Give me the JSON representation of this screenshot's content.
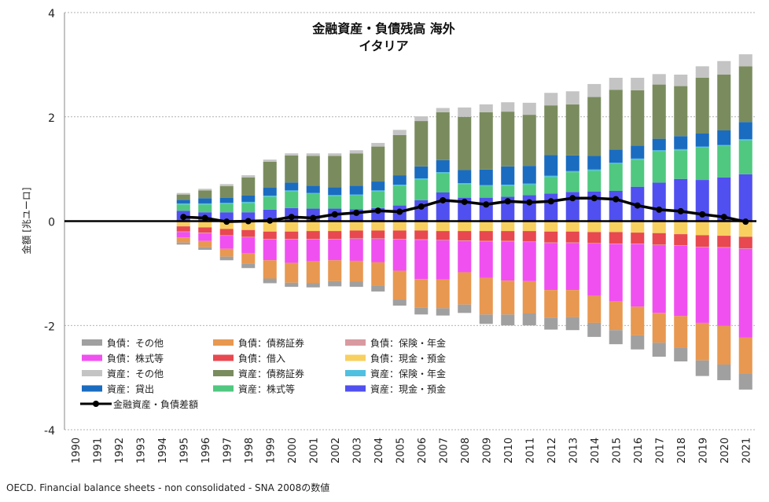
{
  "chart_data": {
    "type": "bar",
    "stacked": true,
    "title": "金融資産・負債残高 海外",
    "subtitle": "イタリア",
    "ylabel": "金額 [兆ユーロ]",
    "xlabel": "",
    "ylim": [
      -4,
      4
    ],
    "yticks": [
      4,
      2,
      0,
      -2,
      -4
    ],
    "grid": true,
    "legend_position": "lower-left",
    "categories": [
      "1990",
      "1991",
      "1992",
      "1993",
      "1994",
      "1995",
      "1996",
      "1997",
      "1998",
      "1999",
      "2000",
      "2001",
      "2002",
      "2003",
      "2004",
      "2005",
      "2006",
      "2007",
      "2008",
      "2009",
      "2010",
      "2011",
      "2012",
      "2013",
      "2014",
      "2015",
      "2016",
      "2017",
      "2018",
      "2019",
      "2020",
      "2021"
    ],
    "asset_series": [
      {
        "name": "資産：現金・預金",
        "color": "#5050f0",
        "values": [
          0,
          0,
          0,
          0,
          0,
          0.2,
          0.17,
          0.17,
          0.17,
          0.22,
          0.25,
          0.24,
          0.24,
          0.23,
          0.25,
          0.3,
          0.4,
          0.55,
          0.45,
          0.45,
          0.47,
          0.5,
          0.53,
          0.56,
          0.57,
          0.58,
          0.66,
          0.74,
          0.81,
          0.79,
          0.84,
          0.9
        ]
      },
      {
        "name": "資産：株式等",
        "color": "#50c880",
        "values": [
          0,
          0,
          0,
          0,
          0,
          0.12,
          0.15,
          0.16,
          0.18,
          0.25,
          0.32,
          0.28,
          0.24,
          0.26,
          0.32,
          0.38,
          0.4,
          0.37,
          0.26,
          0.22,
          0.21,
          0.2,
          0.32,
          0.38,
          0.4,
          0.52,
          0.52,
          0.6,
          0.55,
          0.62,
          0.6,
          0.65
        ]
      },
      {
        "name": "資産：保険・年金",
        "color": "#50c0e0",
        "values": [
          0,
          0,
          0,
          0,
          0,
          0.02,
          0.02,
          0.02,
          0.02,
          0.02,
          0.02,
          0.02,
          0.02,
          0.02,
          0.02,
          0.02,
          0.02,
          0.02,
          0.02,
          0.02,
          0.02,
          0.02,
          0.02,
          0.02,
          0.02,
          0.02,
          0.02,
          0.02,
          0.02,
          0.02,
          0.02,
          0.02
        ]
      },
      {
        "name": "資産：貸出",
        "color": "#1a6cc0",
        "values": [
          0,
          0,
          0,
          0,
          0,
          0.07,
          0.1,
          0.1,
          0.12,
          0.15,
          0.15,
          0.14,
          0.15,
          0.17,
          0.17,
          0.18,
          0.23,
          0.23,
          0.25,
          0.3,
          0.35,
          0.34,
          0.4,
          0.3,
          0.26,
          0.25,
          0.25,
          0.22,
          0.25,
          0.25,
          0.28,
          0.33
        ]
      },
      {
        "name": "資産：債務証券",
        "color": "#7a8c5e",
        "values": [
          0,
          0,
          0,
          0,
          0,
          0.1,
          0.15,
          0.22,
          0.35,
          0.5,
          0.52,
          0.57,
          0.6,
          0.62,
          0.67,
          0.77,
          0.87,
          0.92,
          1.02,
          1.1,
          1.05,
          0.98,
          0.95,
          0.98,
          1.13,
          1.15,
          1.06,
          1.04,
          0.96,
          1.07,
          1.07,
          1.07
        ]
      },
      {
        "name": "資産：その他",
        "color": "#c4c4c4",
        "values": [
          0,
          0,
          0,
          0,
          0,
          0.03,
          0.03,
          0.04,
          0.04,
          0.04,
          0.04,
          0.05,
          0.05,
          0.06,
          0.07,
          0.1,
          0.09,
          0.08,
          0.18,
          0.15,
          0.18,
          0.23,
          0.24,
          0.25,
          0.25,
          0.23,
          0.24,
          0.2,
          0.22,
          0.22,
          0.26,
          0.23
        ]
      }
    ],
    "liability_series": [
      {
        "name": "負債：現金・預金",
        "color": "#f8d060",
        "values": [
          0,
          0,
          0,
          0,
          0,
          -0.1,
          -0.12,
          -0.15,
          -0.17,
          -0.2,
          -0.2,
          -0.19,
          -0.19,
          -0.18,
          -0.18,
          -0.18,
          -0.18,
          -0.19,
          -0.19,
          -0.19,
          -0.19,
          -0.19,
          -0.2,
          -0.2,
          -0.21,
          -0.21,
          -0.22,
          -0.23,
          -0.25,
          -0.27,
          -0.28,
          -0.3
        ]
      },
      {
        "name": "負債：借入",
        "color": "#e84850",
        "values": [
          0,
          0,
          0,
          0,
          0,
          -0.1,
          -0.1,
          -0.12,
          -0.13,
          -0.14,
          -0.14,
          -0.15,
          -0.15,
          -0.15,
          -0.15,
          -0.16,
          -0.17,
          -0.17,
          -0.18,
          -0.19,
          -0.19,
          -0.2,
          -0.21,
          -0.21,
          -0.21,
          -0.22,
          -0.21,
          -0.22,
          -0.21,
          -0.22,
          -0.22,
          -0.22
        ]
      },
      {
        "name": "負債：保険・年金",
        "color": "#d89aa0",
        "values": [
          0,
          0,
          0,
          0,
          0,
          -0.01,
          -0.01,
          -0.01,
          -0.01,
          -0.01,
          -0.01,
          -0.01,
          -0.01,
          -0.01,
          -0.01,
          -0.01,
          -0.01,
          -0.01,
          -0.01,
          -0.01,
          -0.01,
          -0.01,
          -0.01,
          -0.01,
          -0.01,
          -0.01,
          -0.01,
          -0.01,
          -0.01,
          -0.01,
          -0.01,
          -0.01
        ]
      },
      {
        "name": "負債：株式等",
        "color": "#f050f0",
        "values": [
          0,
          0,
          0,
          0,
          0,
          -0.1,
          -0.15,
          -0.25,
          -0.3,
          -0.4,
          -0.45,
          -0.42,
          -0.4,
          -0.42,
          -0.45,
          -0.6,
          -0.75,
          -0.75,
          -0.6,
          -0.7,
          -0.75,
          -0.75,
          -0.9,
          -0.9,
          -1.0,
          -1.1,
          -1.2,
          -1.3,
          -1.35,
          -1.45,
          -1.5,
          -1.7
        ]
      },
      {
        "name": "負債：債務証券",
        "color": "#e89850",
        "values": [
          0,
          0,
          0,
          0,
          0,
          -0.1,
          -0.12,
          -0.15,
          -0.2,
          -0.35,
          -0.38,
          -0.42,
          -0.4,
          -0.4,
          -0.44,
          -0.55,
          -0.55,
          -0.55,
          -0.62,
          -0.7,
          -0.65,
          -0.62,
          -0.53,
          -0.52,
          -0.52,
          -0.55,
          -0.55,
          -0.57,
          -0.6,
          -0.72,
          -0.74,
          -0.7
        ]
      },
      {
        "name": "負債：その他",
        "color": "#a0a0a0",
        "values": [
          0,
          0,
          0,
          0,
          0,
          -0.04,
          -0.05,
          -0.07,
          -0.09,
          -0.09,
          -0.08,
          -0.08,
          -0.1,
          -0.1,
          -0.12,
          -0.12,
          -0.13,
          -0.14,
          -0.16,
          -0.18,
          -0.21,
          -0.23,
          -0.23,
          -0.25,
          -0.27,
          -0.27,
          -0.27,
          -0.27,
          -0.27,
          -0.3,
          -0.3,
          -0.3
        ]
      }
    ],
    "net_series": {
      "name": "金融資産・負債差額",
      "color": "#000000",
      "values": [
        0,
        0,
        0,
        0,
        0,
        0.08,
        0.06,
        -0.01,
        0.0,
        0.01,
        0.08,
        0.06,
        0.13,
        0.16,
        0.2,
        0.18,
        0.28,
        0.4,
        0.37,
        0.32,
        0.38,
        0.36,
        0.38,
        0.44,
        0.44,
        0.42,
        0.3,
        0.22,
        0.19,
        0.13,
        0.08,
        -0.01
      ]
    },
    "legend": [
      [
        "負債：その他",
        "負債：債務証券",
        "負債：保険・年金"
      ],
      [
        "負債：株式等",
        "負債：借入",
        "負債：現金・預金"
      ],
      [
        "資産：その他",
        "資産：債務証券",
        "資産：保険・年金"
      ],
      [
        "資産：貸出",
        "資産：株式等",
        "資産：現金・預金"
      ],
      [
        "金融資産・負債差額"
      ]
    ]
  },
  "source_note": "OECD. Financial balance sheets - non consolidated - SNA 2008の数値"
}
